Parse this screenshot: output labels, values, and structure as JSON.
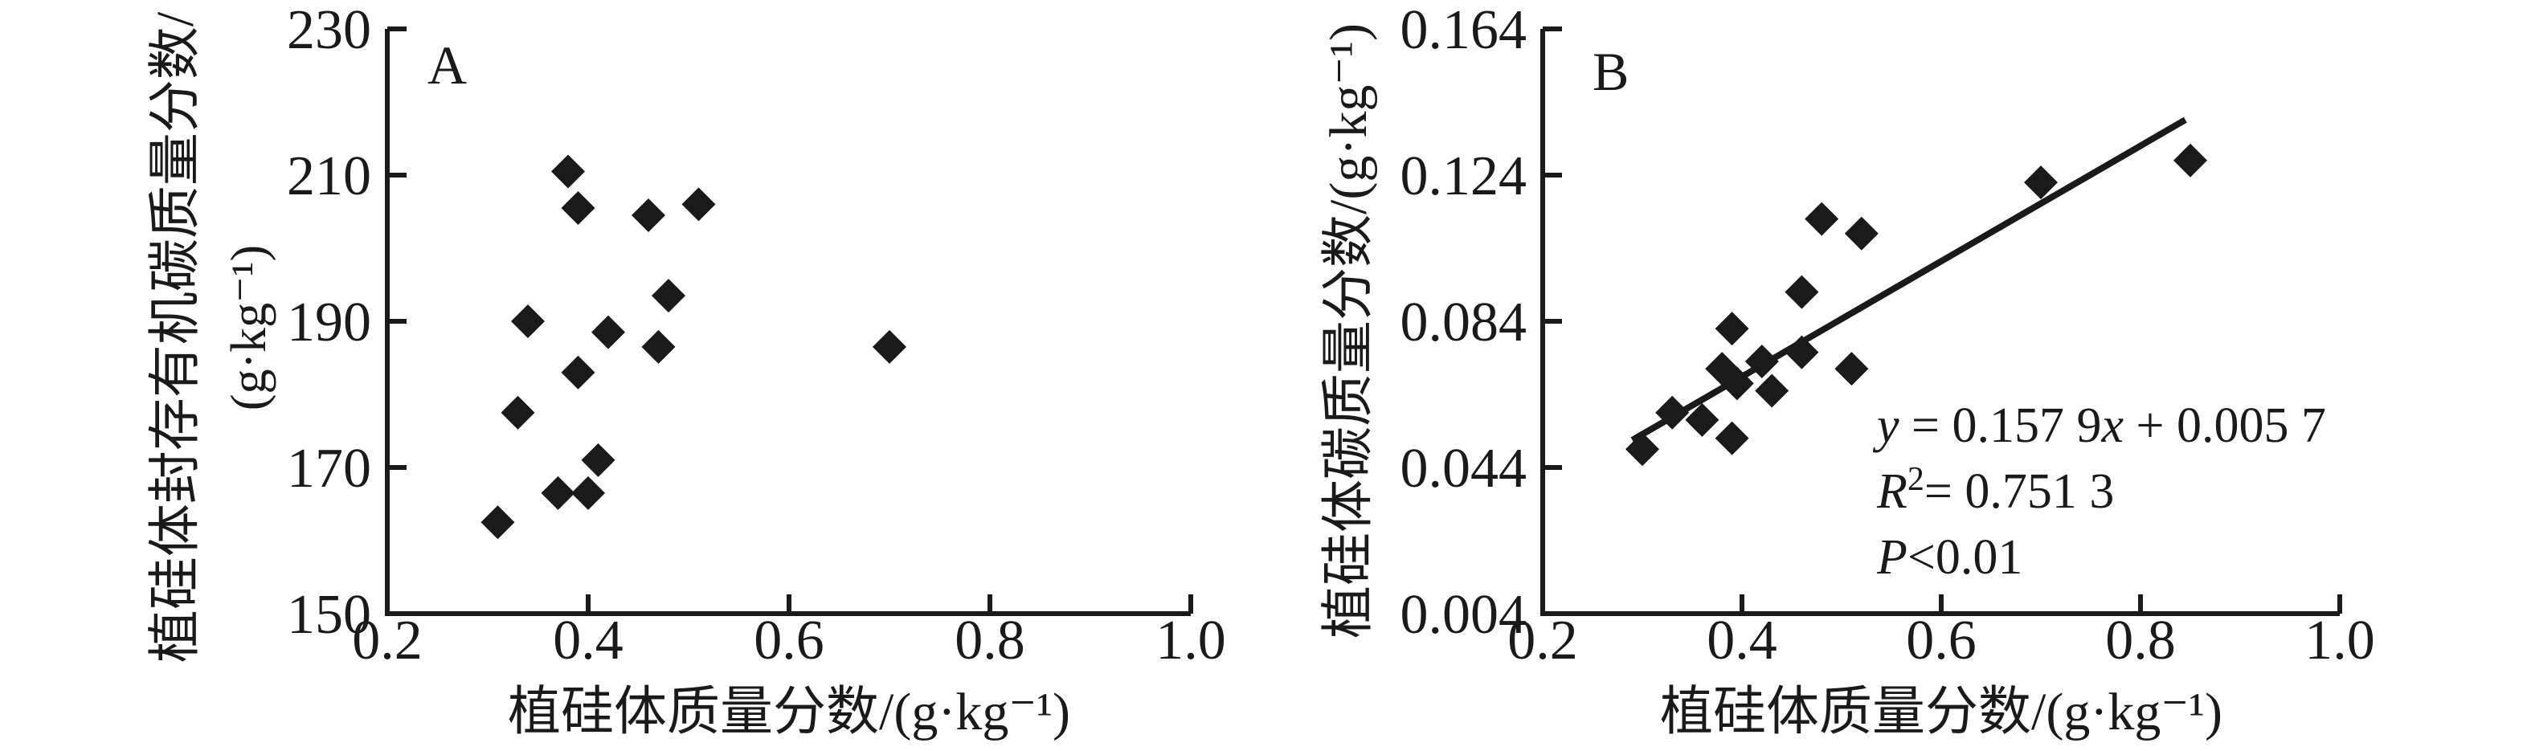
{
  "figure": {
    "background": "#ffffff",
    "ink": "#1a1a1a"
  },
  "chart_data": [
    {
      "type": "scatter",
      "panel_label": "A",
      "title": "",
      "xlabel": "植硅体质量分数/(g·kg⁻¹)",
      "ylabel_lines": [
        "植硅体封存有机碳质量分数/",
        "(g·kg⁻¹)"
      ],
      "xlim": [
        0.2,
        1.0
      ],
      "ylim": [
        150,
        230
      ],
      "grid": false,
      "legend": "none",
      "marker": "diamond",
      "xticks": [
        {
          "v": 0.2,
          "label": "0.2"
        },
        {
          "v": 0.4,
          "label": "0.4"
        },
        {
          "v": 0.6,
          "label": "0.6"
        },
        {
          "v": 0.8,
          "label": "0.8"
        },
        {
          "v": 1.0,
          "label": "1.0"
        }
      ],
      "yticks": [
        {
          "v": 150,
          "label": "150"
        },
        {
          "v": 170,
          "label": "170"
        },
        {
          "v": 190,
          "label": "190"
        },
        {
          "v": 210,
          "label": "210"
        },
        {
          "v": 230,
          "label": "230"
        }
      ],
      "points": [
        [
          0.38,
          210.5
        ],
        [
          0.39,
          205.5
        ],
        [
          0.46,
          204.5
        ],
        [
          0.51,
          206
        ],
        [
          0.48,
          193.5
        ],
        [
          0.34,
          190
        ],
        [
          0.42,
          188.5
        ],
        [
          0.47,
          186.5
        ],
        [
          0.7,
          186.5
        ],
        [
          0.39,
          183
        ],
        [
          0.33,
          177.5
        ],
        [
          0.41,
          171
        ],
        [
          0.37,
          166.5
        ],
        [
          0.4,
          166.5
        ],
        [
          0.31,
          162.5
        ]
      ]
    },
    {
      "type": "scatter",
      "panel_label": "B",
      "title": "",
      "xlabel": "植硅体质量分数/(g·kg⁻¹)",
      "ylabel_lines": [
        "植硅体碳质量分数/(g·kg⁻¹)"
      ],
      "xlim": [
        0.2,
        1.0
      ],
      "ylim": [
        0.004,
        0.164
      ],
      "grid": false,
      "legend": "none",
      "marker": "diamond",
      "xticks": [
        {
          "v": 0.2,
          "label": "0.2"
        },
        {
          "v": 0.4,
          "label": "0.4"
        },
        {
          "v": 0.6,
          "label": "0.6"
        },
        {
          "v": 0.8,
          "label": "0.8"
        },
        {
          "v": 1.0,
          "label": "1.0"
        }
      ],
      "yticks": [
        {
          "v": 0.004,
          "label": "0.004"
        },
        {
          "v": 0.044,
          "label": "0.044"
        },
        {
          "v": 0.084,
          "label": "0.084"
        },
        {
          "v": 0.124,
          "label": "0.124"
        },
        {
          "v": 0.164,
          "label": "0.164"
        }
      ],
      "points": [
        [
          0.3,
          0.049
        ],
        [
          0.33,
          0.059
        ],
        [
          0.36,
          0.057
        ],
        [
          0.39,
          0.052
        ],
        [
          0.38,
          0.071
        ],
        [
          0.395,
          0.067
        ],
        [
          0.42,
          0.073
        ],
        [
          0.43,
          0.065
        ],
        [
          0.46,
          0.0755
        ],
        [
          0.51,
          0.071
        ],
        [
          0.39,
          0.082
        ],
        [
          0.46,
          0.092
        ],
        [
          0.48,
          0.112
        ],
        [
          0.52,
          0.108
        ],
        [
          0.7,
          0.122
        ],
        [
          0.85,
          0.128
        ]
      ],
      "regression": {
        "slope": 0.1579,
        "intercept": 0.0057,
        "x_start": 0.29,
        "x_end": 0.845
      },
      "annotation_lines": [
        [
          {
            "t": "y",
            "i": true
          },
          {
            "t": " = 0.157 9"
          },
          {
            "t": "x",
            "i": true
          },
          {
            "t": " + 0.005 7"
          }
        ],
        [
          {
            "t": "R",
            "i": true
          },
          {
            "t": "2",
            "sup": true
          },
          {
            "t": "= 0.751 3"
          }
        ],
        [
          {
            "t": "P",
            "i": true
          },
          {
            "t": "<0.01"
          }
        ]
      ]
    }
  ]
}
